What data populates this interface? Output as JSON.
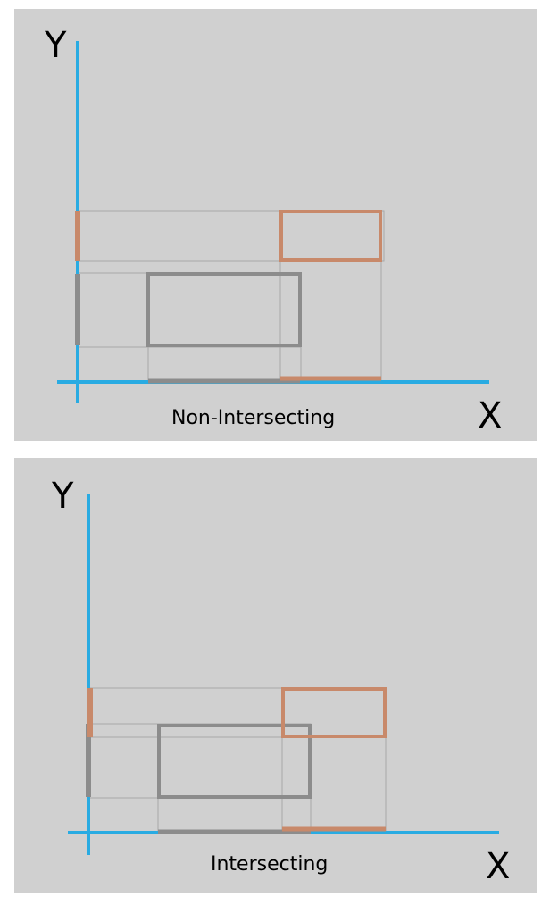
{
  "colors": {
    "background": "#d0d0d0",
    "axis": "#29abe2",
    "box_a": "#8c8c8c",
    "box_b": "#c8896a",
    "guide": "#a8a8a8"
  },
  "panels": [
    {
      "caption": "Non-Intersecting",
      "y_axis_label": "Y",
      "x_axis_label": "X"
    },
    {
      "caption": "Intersecting",
      "y_axis_label": "Y",
      "x_axis_label": "X"
    }
  ]
}
